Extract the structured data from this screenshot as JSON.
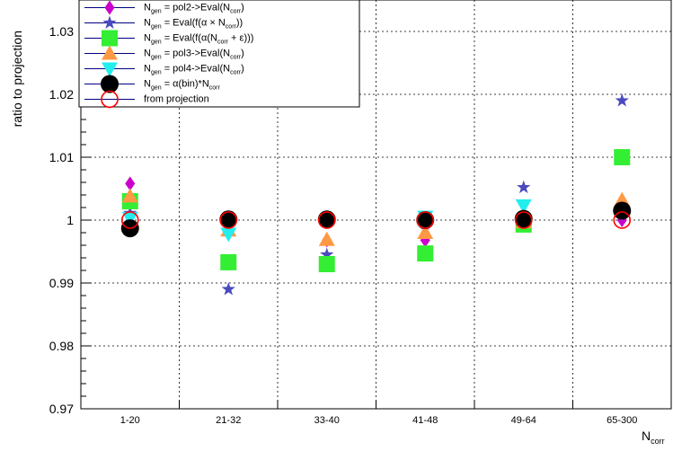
{
  "chart_data": {
    "type": "scatter",
    "title": "",
    "xlabel": "N_corr",
    "ylabel": "ratio to projection",
    "ylim": [
      0.97,
      1.035
    ],
    "yticks": [
      "0.97",
      "0.98",
      "0.99",
      "1",
      "1.01",
      "1.02",
      "1.03"
    ],
    "categories": [
      "1-20",
      "21-32",
      "33-40",
      "41-48",
      "49-64",
      "65-300"
    ],
    "grid": true,
    "legend_position": "top-left",
    "series": [
      {
        "name": "N_gen = pol2->Eval(N_corr)",
        "legend": {
          "pre": "N",
          "sub": "gen",
          "post": " = pol2->Eval(N",
          "sub2": "corr",
          "end": ")"
        },
        "marker": "diamond",
        "color": "#cc00cc",
        "values": [
          1.0058,
          0.9993,
          0.9968,
          0.9968,
          1.0,
          1.0
        ]
      },
      {
        "name": "N_gen = Eval(f(α × N_corr))",
        "legend": {
          "pre": "N",
          "sub": "gen",
          "post": " = Eval(f(α × N",
          "sub2": "corr",
          "end": "))"
        },
        "marker": "star",
        "color": "#4a4ac0",
        "values": [
          1.0011,
          0.989,
          0.9945,
          0.9994,
          1.0052,
          1.019
        ]
      },
      {
        "name": "N_gen = Eval(f(α(N_corr + ε)))",
        "legend": {
          "pre": "N",
          "sub": "gen",
          "post": " = Eval(f(α(N",
          "sub2": "corr",
          "end": " + ε)))"
        },
        "marker": "square",
        "color": "#33ee33",
        "values": [
          1.003,
          0.9933,
          0.993,
          0.9947,
          0.9993,
          1.01
        ]
      },
      {
        "name": "N_gen = pol3->Eval(N_corr)",
        "legend": {
          "pre": "N",
          "sub": "gen",
          "post": " = pol3->Eval(N",
          "sub2": "corr",
          "end": ")"
        },
        "marker": "triangle-up",
        "color": "#ff9944",
        "values": [
          1.0038,
          0.9984,
          0.9969,
          0.998,
          0.9997,
          1.0032
        ]
      },
      {
        "name": "N_gen = pol4->Eval(N_corr)",
        "legend": {
          "pre": "N",
          "sub": "gen",
          "post": " = pol4->Eval(N",
          "sub2": "corr",
          "end": ")"
        },
        "marker": "triangle-down",
        "color": "#22eeee",
        "values": [
          1.0003,
          0.9978,
          0.9998,
          1.0005,
          1.0023,
          1.0012
        ]
      },
      {
        "name": "N_gen = α(bin)*N_corr",
        "legend": {
          "pre": "N",
          "sub": "gen",
          "post": " = α(bin)*N",
          "sub2": "corr",
          "end": ""
        },
        "marker": "circle",
        "color": "#000000",
        "values": [
          0.9987,
          1.0001,
          1.0001,
          1.0,
          1.0002,
          1.0015
        ]
      },
      {
        "name": "from projection",
        "legend": {
          "pre": "from projection",
          "sub": "",
          "post": "",
          "sub2": "",
          "end": ""
        },
        "marker": "open-circle",
        "color": "#ff0000",
        "values": [
          1.0,
          1.0,
          1.0,
          1.0,
          1.0,
          1.0
        ]
      }
    ]
  }
}
